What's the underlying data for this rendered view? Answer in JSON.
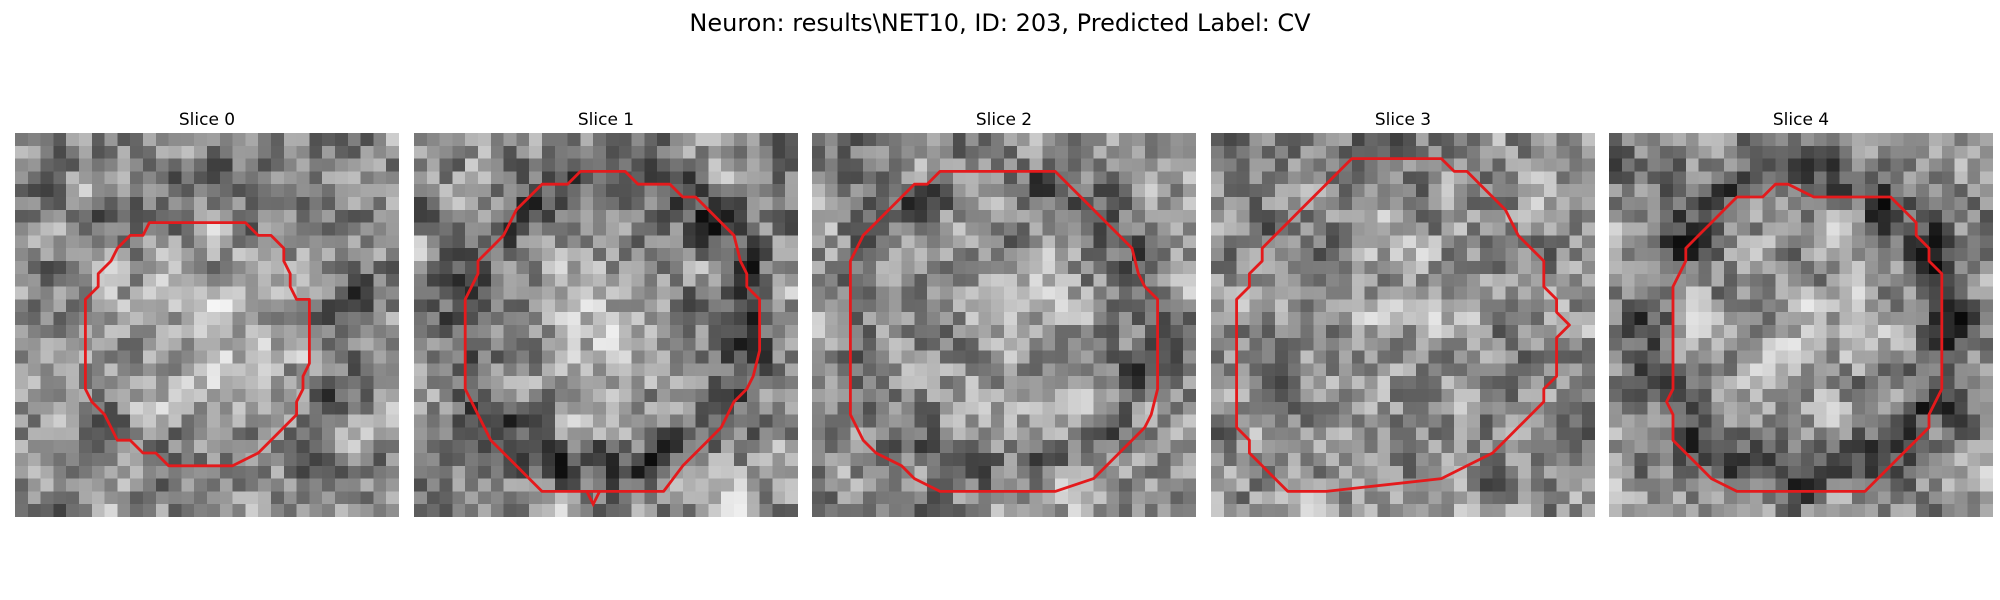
{
  "title": "Neuron: results\\NET10, ID: 203, Predicted Label: CV",
  "slices": [
    {
      "title": "Slice 0",
      "seed": 11,
      "dark_ring": 0.35,
      "inner_bright": 0.55
    },
    {
      "title": "Slice 1",
      "seed": 23,
      "dark_ring": 0.75,
      "inner_bright": 0.35
    },
    {
      "title": "Slice 2",
      "seed": 37,
      "dark_ring": 0.45,
      "inner_bright": 0.25
    },
    {
      "title": "Slice 3",
      "seed": 53,
      "dark_ring": 0.15,
      "inner_bright": 0.3
    },
    {
      "title": "Slice 4",
      "seed": 71,
      "dark_ring": 0.8,
      "inner_bright": 0.35
    }
  ],
  "contour_color": "#e41a1c"
}
